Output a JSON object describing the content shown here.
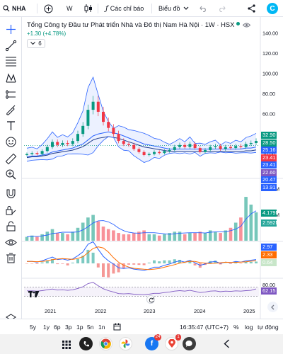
{
  "toolbar": {
    "symbol": "NHA",
    "interval": "W",
    "indicators_label": "Các chỉ báo",
    "chart_type_label": "Biểu đồ"
  },
  "legend": {
    "title": "Tổng Công ty Đầu tư Phát triển Nhà và Đô thị Nam Hà Nội · 1W · HSX",
    "change": "+1.30 (+4.78%)",
    "collapsed_count": "6"
  },
  "price_axis": {
    "main_ticks": [
      "140.00",
      "120.00",
      "100.00",
      "80.00",
      "60.00",
      "40.00",
      "20.00"
    ],
    "volume_ticks": [
      "40.00M",
      "20.00M"
    ],
    "macd_ticks": [
      "2.97",
      "2.33",
      "0.64"
    ],
    "rsi_ticks": [
      "80.00",
      "62.15"
    ]
  },
  "price_tags": [
    {
      "value": "32.90",
      "color": "#089981"
    },
    {
      "value": "28.50",
      "color": "#089981"
    },
    {
      "value": "25.16",
      "color": "#2962ff"
    },
    {
      "value": "23.41",
      "color": "#f23645"
    },
    {
      "value": "23.41",
      "color": "#2962ff"
    },
    {
      "value": "22.60",
      "color": "#7e57c2"
    },
    {
      "value": "20.47",
      "color": "#2962ff"
    },
    {
      "value": "13.91",
      "color": "#2962ff"
    }
  ],
  "volume_tags": [
    {
      "value": "4.179M",
      "color": "#089981"
    },
    {
      "value": "2.592M",
      "color": "#26a69a"
    }
  ],
  "macd_tags": [
    {
      "value": "2.97",
      "color": "#2962ff"
    },
    {
      "value": "2.33",
      "color": "#ff6d00"
    },
    {
      "value": "0.64",
      "color": "#c8e6c9"
    }
  ],
  "rsi_tags": [
    {
      "value": "62.15",
      "color": "#7e57c2"
    }
  ],
  "time_axis": [
    "2021",
    "2022",
    "2023",
    "2024",
    "2025"
  ],
  "timeframes": [
    "5y",
    "1y",
    "6p",
    "3p",
    "1p",
    "5n",
    "1n"
  ],
  "bottom_right": {
    "clock": "16:35:47 (UTC+7)",
    "percent": "%",
    "log": "log",
    "auto": "tự động"
  },
  "navbar_badges": {
    "facebook": "24",
    "other": "1"
  },
  "colors": {
    "up": "#089981",
    "down": "#f23645",
    "accent": "#2962ff",
    "bb_fill": "#2962ff"
  },
  "chart_data": {
    "type": "candlestick",
    "x": [
      "2020-12",
      "2021-01",
      "2021-02",
      "2021-03",
      "2021-04",
      "2021-05",
      "2021-06",
      "2021-07",
      "2021-08",
      "2021-09",
      "2021-10",
      "2021-11",
      "2021-12",
      "2022-01",
      "2022-02",
      "2022-03",
      "2022-04",
      "2022-05",
      "2022-06",
      "2022-07",
      "2022-08",
      "2022-09",
      "2022-10",
      "2022-11",
      "2022-12",
      "2023-01",
      "2023-02",
      "2023-03",
      "2023-04",
      "2023-05",
      "2023-06",
      "2023-07",
      "2023-08",
      "2023-09",
      "2023-10",
      "2023-11",
      "2023-12",
      "2024-01",
      "2024-02",
      "2024-03",
      "2024-04",
      "2024-05",
      "2024-06",
      "2024-07",
      "2024-08",
      "2024-09"
    ],
    "close": [
      20,
      21,
      20,
      23,
      27,
      32,
      29,
      31,
      30,
      33,
      40,
      48,
      64,
      72,
      62,
      52,
      46,
      40,
      33,
      30,
      29,
      25,
      22,
      19,
      20,
      22,
      21,
      23,
      24,
      27,
      29,
      27,
      30,
      26,
      22,
      24,
      27,
      28,
      25,
      27,
      26,
      28,
      27,
      30,
      31,
      33
    ],
    "ylim": [
      0,
      145
    ],
    "series": [
      {
        "name": "MA",
        "values": [
          17,
          18,
          18,
          19,
          20,
          22,
          23,
          24,
          25,
          26,
          28,
          30,
          34,
          38,
          40,
          41,
          42,
          41,
          40,
          38,
          36,
          34,
          32,
          30,
          29,
          28,
          27,
          26,
          25,
          25,
          25,
          25,
          25,
          25,
          25,
          25,
          25,
          25,
          25,
          25,
          25,
          25,
          25,
          26,
          26,
          27
        ]
      }
    ],
    "volume": {
      "ylim": [
        0,
        45
      ],
      "values": [
        3,
        4,
        3,
        5,
        7,
        9,
        6,
        6,
        5,
        7,
        10,
        14,
        18,
        20,
        15,
        11,
        9,
        8,
        6,
        5,
        5,
        6,
        7,
        8,
        5,
        5,
        4,
        5,
        6,
        7,
        7,
        5,
        6,
        6,
        7,
        6,
        8,
        7,
        6,
        8,
        10,
        14,
        18,
        34,
        28,
        22
      ]
    },
    "macd": {
      "macd_last": 2.97,
      "signal_last": 2.33,
      "hist_last": 0.64
    },
    "rsi": {
      "last": 62.15,
      "levels": [
        70,
        30
      ]
    }
  }
}
